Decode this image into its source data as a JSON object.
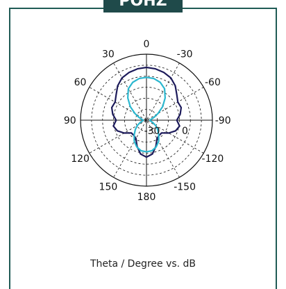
{
  "header": {
    "title": "POHZ"
  },
  "caption": "Theta / Degree vs. dB",
  "chart_data": {
    "type": "polar",
    "title": "",
    "caption": "Theta / Degree vs. dB",
    "angle_labels": [
      {
        "text": "0",
        "deg": 0
      },
      {
        "text": "-30",
        "deg": 30
      },
      {
        "text": "-60",
        "deg": 60
      },
      {
        "text": "-90",
        "deg": 90
      },
      {
        "text": "-120",
        "deg": 120
      },
      {
        "text": "-150",
        "deg": 150
      },
      {
        "text": "180",
        "deg": 180
      },
      {
        "text": "150",
        "deg": 210
      },
      {
        "text": "120",
        "deg": 240
      },
      {
        "text": "90",
        "deg": 270
      },
      {
        "text": "60",
        "deg": 300
      },
      {
        "text": "30",
        "deg": 330
      }
    ],
    "radial_labels": [
      {
        "text": "0",
        "r": 0.5
      },
      {
        "text": "-30",
        "r": 0
      }
    ],
    "rmax": 1,
    "rings": [
      0.166,
      0.333,
      0.5,
      0.666,
      0.833,
      1
    ],
    "spokes_deg": [
      0,
      30,
      60,
      90,
      120,
      150
    ],
    "series": [
      {
        "color": "#1c1a5a",
        "points": [
          [
            0,
            0.8
          ],
          [
            10,
            0.79
          ],
          [
            20,
            0.77
          ],
          [
            30,
            0.74
          ],
          [
            40,
            0.68
          ],
          [
            50,
            0.6
          ],
          [
            60,
            0.55
          ],
          [
            70,
            0.56
          ],
          [
            80,
            0.52
          ],
          [
            90,
            0.46
          ],
          [
            100,
            0.51
          ],
          [
            110,
            0.47
          ],
          [
            120,
            0.39
          ],
          [
            130,
            0.3
          ],
          [
            140,
            0.3
          ],
          [
            150,
            0.32
          ],
          [
            160,
            0.42
          ],
          [
            170,
            0.52
          ],
          [
            180,
            0.56
          ],
          [
            190,
            0.52
          ],
          [
            200,
            0.42
          ],
          [
            210,
            0.32
          ],
          [
            220,
            0.3
          ],
          [
            230,
            0.3
          ],
          [
            240,
            0.39
          ],
          [
            250,
            0.47
          ],
          [
            260,
            0.51
          ],
          [
            270,
            0.46
          ],
          [
            280,
            0.52
          ],
          [
            290,
            0.56
          ],
          [
            300,
            0.55
          ],
          [
            310,
            0.6
          ],
          [
            320,
            0.68
          ],
          [
            330,
            0.74
          ],
          [
            340,
            0.77
          ],
          [
            350,
            0.79
          ],
          [
            360,
            0.8
          ]
        ]
      },
      {
        "color": "#2bb7cf",
        "points": [
          [
            0,
            0.65
          ],
          [
            10,
            0.64
          ],
          [
            20,
            0.61
          ],
          [
            30,
            0.55
          ],
          [
            40,
            0.44
          ],
          [
            50,
            0.32
          ],
          [
            60,
            0.2
          ],
          [
            70,
            0.12
          ],
          [
            80,
            0.07
          ],
          [
            90,
            0.05
          ],
          [
            100,
            0.06
          ],
          [
            110,
            0.1
          ],
          [
            120,
            0.16
          ],
          [
            130,
            0.22
          ],
          [
            140,
            0.29
          ],
          [
            150,
            0.37
          ],
          [
            160,
            0.43
          ],
          [
            170,
            0.47
          ],
          [
            180,
            0.48
          ],
          [
            190,
            0.47
          ],
          [
            200,
            0.43
          ],
          [
            210,
            0.37
          ],
          [
            220,
            0.29
          ],
          [
            230,
            0.22
          ],
          [
            240,
            0.16
          ],
          [
            250,
            0.1
          ],
          [
            260,
            0.06
          ],
          [
            270,
            0.05
          ],
          [
            280,
            0.07
          ],
          [
            290,
            0.12
          ],
          [
            300,
            0.2
          ],
          [
            310,
            0.32
          ],
          [
            320,
            0.44
          ],
          [
            330,
            0.55
          ],
          [
            340,
            0.61
          ],
          [
            350,
            0.64
          ],
          [
            360,
            0.65
          ]
        ]
      }
    ]
  }
}
